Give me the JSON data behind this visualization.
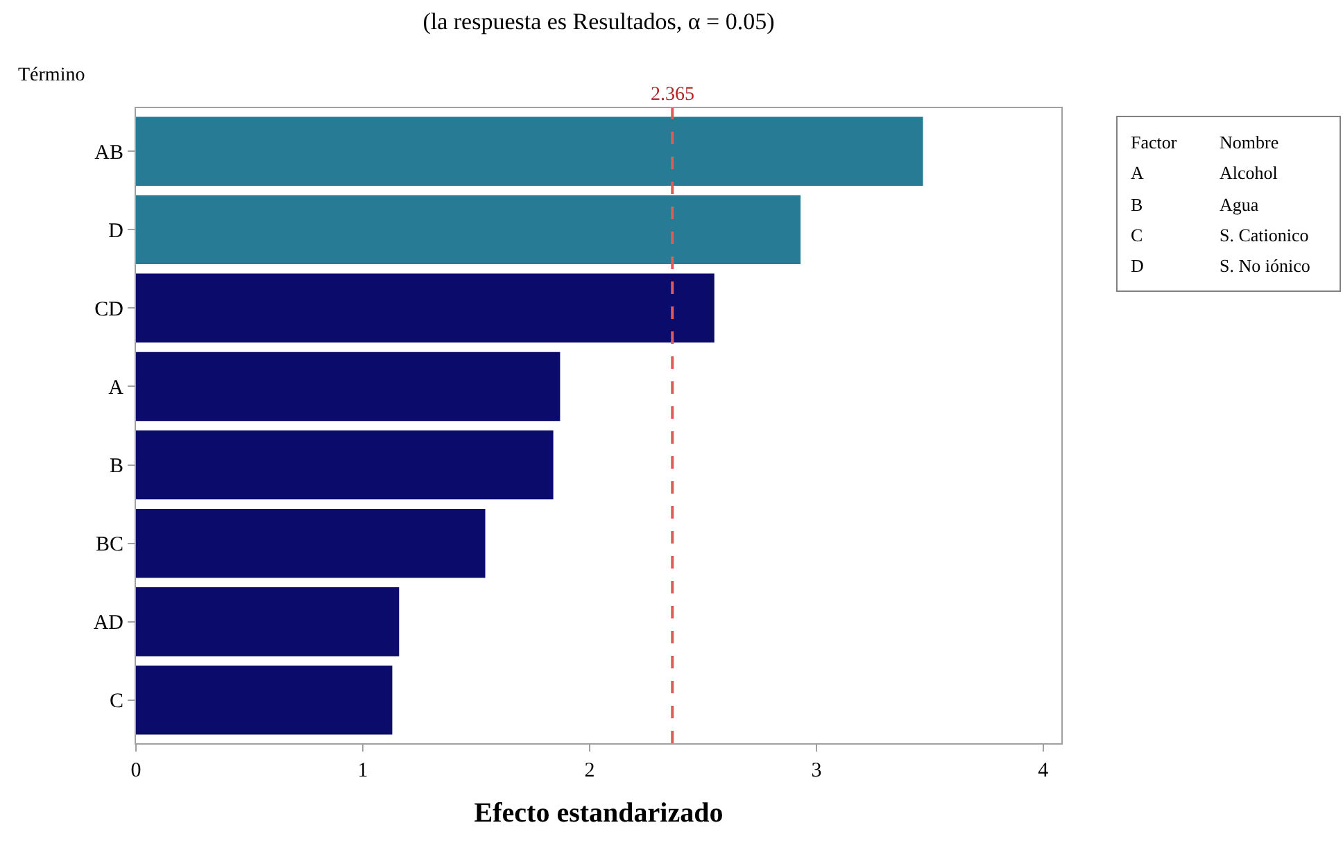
{
  "chart_data": {
    "type": "bar",
    "orientation": "horizontal",
    "title": "(la respuesta es Resultados, α = 0.05)",
    "xlabel": "Efecto estandarizado",
    "ylabel": "Término",
    "categories": [
      "AB",
      "D",
      "CD",
      "A",
      "B",
      "BC",
      "AD",
      "C"
    ],
    "values": [
      3.47,
      2.93,
      2.55,
      1.87,
      1.84,
      1.54,
      1.16,
      1.13
    ],
    "colors": [
      "#277b94",
      "#277b94",
      "#0b0b6b",
      "#0b0b6b",
      "#0b0b6b",
      "#0b0b6b",
      "#0b0b6b",
      "#0b0b6b"
    ],
    "xlim": [
      0,
      4.08
    ],
    "xticks": [
      0,
      1,
      2,
      3,
      4
    ],
    "ref_lines": [
      {
        "axis": "x",
        "value": 2.365,
        "label": "2.365",
        "color": "#e05a5a",
        "line_style": "dashed"
      }
    ],
    "annotations": [
      "Factor",
      "Nombre",
      "A",
      "Alcohol",
      "B",
      "Agua",
      "C",
      "S. Cationico",
      "D",
      "S. No iónico"
    ]
  }
}
